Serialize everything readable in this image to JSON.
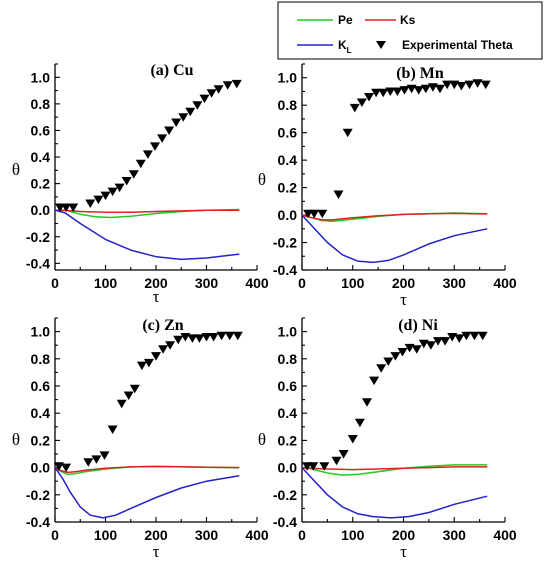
{
  "legend": {
    "placement": "top-right",
    "entries": [
      {
        "label": "Pe",
        "sub": "",
        "color": "#22cc22",
        "kind": "line"
      },
      {
        "label": "Ks",
        "sub": "",
        "color": "#dd2222",
        "kind": "line"
      },
      {
        "label": "K",
        "sub": "L",
        "color": "#2222cc",
        "kind": "line"
      },
      {
        "label": "Experimental Theta",
        "sub": "",
        "color": "#000000",
        "kind": "marker"
      }
    ]
  },
  "chart_data": [
    {
      "type": "line",
      "title": "(a) Cu",
      "xlabel": "τ",
      "ylabel": "θ",
      "xlim": [
        0,
        400
      ],
      "ylim": [
        -0.45,
        1.1
      ],
      "xticks": [
        0,
        100,
        200,
        300,
        400
      ],
      "yticks": [
        -0.4,
        -0.2,
        0.0,
        0.2,
        0.4,
        0.6,
        0.8,
        1.0
      ],
      "ytick_labels": [
        "-0.4",
        "-0.2",
        "0.0",
        "0.2",
        "0.4",
        "0.6",
        "0.8",
        "1.0"
      ],
      "series": [
        {
          "name": "Pe",
          "color": "#22cc22",
          "x": [
            0,
            20,
            50,
            80,
            110,
            150,
            200,
            250,
            300,
            365
          ],
          "y": [
            0.0,
            0.0,
            -0.03,
            -0.05,
            -0.055,
            -0.045,
            -0.025,
            -0.01,
            0.0,
            0.005
          ]
        },
        {
          "name": "Ks",
          "color": "#dd2222",
          "x": [
            0,
            20,
            50,
            100,
            150,
            200,
            250,
            300,
            365
          ],
          "y": [
            0.0,
            0.0,
            -0.01,
            -0.015,
            -0.015,
            -0.01,
            -0.005,
            0.0,
            0.0
          ]
        },
        {
          "name": "K",
          "color": "#2222cc",
          "x": [
            0,
            20,
            50,
            100,
            150,
            200,
            250,
            300,
            365
          ],
          "y": [
            0.0,
            -0.02,
            -0.1,
            -0.22,
            -0.3,
            -0.35,
            -0.37,
            -0.36,
            -0.33
          ]
        }
      ],
      "points": {
        "name": "Experimental Theta",
        "x": [
          10,
          22,
          36,
          70,
          86,
          100,
          114,
          128,
          142,
          156,
          170,
          184,
          198,
          212,
          226,
          240,
          254,
          268,
          282,
          296,
          310,
          324,
          342,
          360
        ],
        "y": [
          0.02,
          0.02,
          0.02,
          0.05,
          0.08,
          0.11,
          0.14,
          0.17,
          0.22,
          0.27,
          0.35,
          0.42,
          0.48,
          0.54,
          0.6,
          0.66,
          0.7,
          0.74,
          0.79,
          0.84,
          0.88,
          0.91,
          0.94,
          0.95
        ]
      }
    },
    {
      "type": "line",
      "title": "(b) Mn",
      "xlabel": "τ",
      "ylabel": "θ",
      "xlim": [
        0,
        400
      ],
      "ylim": [
        -0.4,
        1.1
      ],
      "xticks": [
        0,
        100,
        200,
        300,
        400
      ],
      "yticks": [
        -0.4,
        -0.2,
        0.0,
        0.2,
        0.4,
        0.6,
        0.8,
        1.0
      ],
      "ytick_labels": [
        "-0.4",
        "-0.2",
        "0.0",
        "0.2",
        "0.4",
        "0.6",
        "0.8",
        "1.0"
      ],
      "series": [
        {
          "name": "Pe",
          "color": "#22cc22",
          "x": [
            0,
            20,
            40,
            60,
            100,
            150,
            200,
            250,
            300,
            365
          ],
          "y": [
            0.0,
            -0.02,
            -0.04,
            -0.045,
            -0.03,
            -0.01,
            0.005,
            0.01,
            0.015,
            0.01
          ]
        },
        {
          "name": "Ks",
          "color": "#dd2222",
          "x": [
            0,
            20,
            40,
            60,
            100,
            150,
            200,
            250,
            300,
            365
          ],
          "y": [
            0.0,
            -0.02,
            -0.035,
            -0.035,
            -0.02,
            -0.005,
            0.005,
            0.01,
            0.012,
            0.008
          ]
        },
        {
          "name": "K",
          "color": "#2222cc",
          "x": [
            0,
            20,
            50,
            80,
            110,
            140,
            170,
            200,
            250,
            300,
            365
          ],
          "y": [
            0.0,
            -0.08,
            -0.2,
            -0.29,
            -0.335,
            -0.345,
            -0.33,
            -0.29,
            -0.21,
            -0.15,
            -0.1
          ]
        }
      ],
      "points": {
        "name": "Experimental Theta",
        "x": [
          12,
          24,
          40,
          72,
          90,
          104,
          118,
          132,
          146,
          160,
          174,
          188,
          202,
          216,
          230,
          244,
          258,
          272,
          286,
          300,
          314,
          330,
          346,
          362
        ],
        "y": [
          0.01,
          0.01,
          0.01,
          0.15,
          0.6,
          0.78,
          0.82,
          0.86,
          0.89,
          0.89,
          0.9,
          0.9,
          0.91,
          0.92,
          0.91,
          0.92,
          0.93,
          0.92,
          0.95,
          0.95,
          0.94,
          0.95,
          0.96,
          0.95
        ]
      }
    },
    {
      "type": "line",
      "title": "(c) Zn",
      "xlabel": "τ",
      "ylabel": "θ",
      "xlim": [
        0,
        400
      ],
      "ylim": [
        -0.4,
        1.1
      ],
      "xticks": [
        0,
        100,
        200,
        300,
        400
      ],
      "yticks": [
        -0.4,
        -0.2,
        0.0,
        0.2,
        0.4,
        0.6,
        0.8,
        1.0
      ],
      "ytick_labels": [
        "-0.4",
        "-0.2",
        "0.0",
        "0.2",
        "0.4",
        "0.6",
        "0.8",
        "1.0"
      ],
      "series": [
        {
          "name": "Pe",
          "color": "#22cc22",
          "x": [
            0,
            10,
            25,
            40,
            60,
            100,
            150,
            200,
            250,
            300,
            365
          ],
          "y": [
            0.0,
            -0.025,
            -0.05,
            -0.045,
            -0.03,
            -0.01,
            0.005,
            0.01,
            0.005,
            0.003,
            0.0
          ]
        },
        {
          "name": "Ks",
          "color": "#dd2222",
          "x": [
            0,
            10,
            25,
            40,
            60,
            100,
            150,
            200,
            250,
            300,
            365
          ],
          "y": [
            0.0,
            -0.02,
            -0.035,
            -0.03,
            -0.02,
            -0.005,
            0.005,
            0.008,
            0.006,
            0.003,
            0.0
          ]
        },
        {
          "name": "K",
          "color": "#2222cc",
          "x": [
            0,
            15,
            30,
            50,
            70,
            95,
            120,
            150,
            200,
            250,
            300,
            365
          ],
          "y": [
            0.0,
            -0.08,
            -0.18,
            -0.29,
            -0.35,
            -0.37,
            -0.35,
            -0.3,
            -0.22,
            -0.15,
            -0.1,
            -0.06
          ]
        }
      ],
      "points": {
        "name": "Experimental Theta",
        "x": [
          8,
          22,
          66,
          82,
          98,
          114,
          132,
          146,
          158,
          172,
          186,
          200,
          214,
          228,
          244,
          258,
          272,
          286,
          300,
          314,
          330,
          346,
          362
        ],
        "y": [
          0.01,
          0.0,
          0.04,
          0.06,
          0.09,
          0.28,
          0.47,
          0.53,
          0.58,
          0.75,
          0.77,
          0.82,
          0.87,
          0.9,
          0.94,
          0.96,
          0.95,
          0.95,
          0.96,
          0.96,
          0.97,
          0.97,
          0.97
        ]
      }
    },
    {
      "type": "line",
      "title": "(d) Ni",
      "xlabel": "τ",
      "ylabel": "θ",
      "xlim": [
        0,
        400
      ],
      "ylim": [
        -0.4,
        1.1
      ],
      "xticks": [
        0,
        100,
        200,
        300,
        400
      ],
      "yticks": [
        -0.4,
        -0.2,
        0.0,
        0.2,
        0.4,
        0.6,
        0.8,
        1.0
      ],
      "ytick_labels": [
        "-0.4",
        "-0.2",
        "0.0",
        "0.2",
        "0.4",
        "0.6",
        "0.8",
        "1.0"
      ],
      "series": [
        {
          "name": "Pe",
          "color": "#22cc22",
          "x": [
            0,
            20,
            50,
            80,
            110,
            150,
            200,
            250,
            300,
            365
          ],
          "y": [
            0.0,
            -0.01,
            -0.04,
            -0.055,
            -0.05,
            -0.03,
            -0.005,
            0.01,
            0.02,
            0.02
          ]
        },
        {
          "name": "Ks",
          "color": "#dd2222",
          "x": [
            0,
            20,
            50,
            100,
            150,
            200,
            250,
            300,
            365
          ],
          "y": [
            0.0,
            -0.005,
            -0.01,
            -0.015,
            -0.01,
            -0.005,
            0.0,
            0.005,
            0.005
          ]
        },
        {
          "name": "K",
          "color": "#2222cc",
          "x": [
            0,
            20,
            50,
            80,
            110,
            140,
            175,
            210,
            250,
            300,
            365
          ],
          "y": [
            0.0,
            -0.08,
            -0.2,
            -0.29,
            -0.34,
            -0.36,
            -0.37,
            -0.36,
            -0.33,
            -0.27,
            -0.21
          ]
        }
      ],
      "points": {
        "name": "Experimental Theta",
        "x": [
          10,
          22,
          44,
          68,
          82,
          100,
          114,
          128,
          142,
          156,
          170,
          184,
          198,
          212,
          226,
          240,
          254,
          268,
          282,
          296,
          310,
          324,
          340,
          356
        ],
        "y": [
          0.01,
          0.01,
          0.01,
          0.05,
          0.1,
          0.21,
          0.33,
          0.48,
          0.64,
          0.73,
          0.78,
          0.82,
          0.85,
          0.88,
          0.87,
          0.91,
          0.9,
          0.93,
          0.93,
          0.96,
          0.95,
          0.97,
          0.97,
          0.97
        ]
      }
    }
  ]
}
